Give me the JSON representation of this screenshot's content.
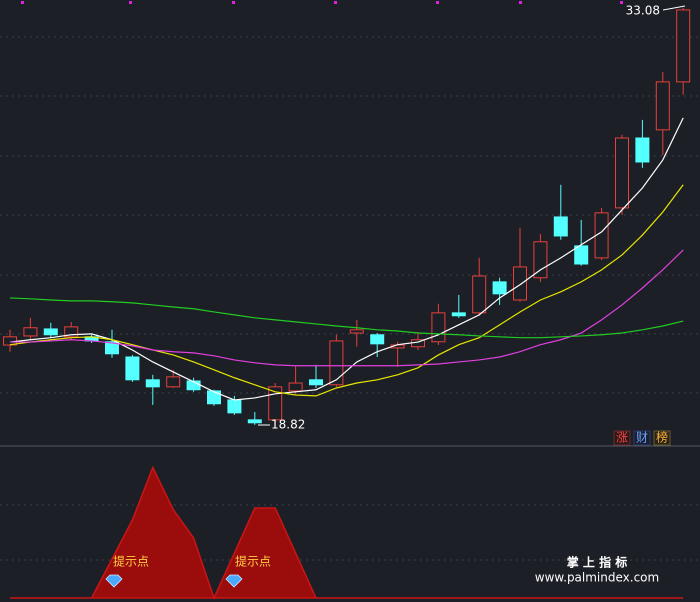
{
  "chart_data": [
    {
      "type": "candlestick",
      "open": [
        21.55,
        21.86,
        22.1,
        21.83,
        21.83,
        21.66,
        21.14,
        20.36,
        20.12,
        20.32,
        19.98,
        19.67,
        18.99,
        18.99,
        19.98,
        20.36,
        20.19,
        21.96,
        21.9,
        21.45,
        21.49,
        21.66,
        22.65,
        22.65,
        23.71,
        23.09,
        23.85,
        25.93,
        24.94,
        24.53,
        26.24,
        28.63,
        28.91,
        30.55
      ],
      "high": [
        22.07,
        22.48,
        22.31,
        22.34,
        21.9,
        22.07,
        21.21,
        20.53,
        20.7,
        20.43,
        20.02,
        19.81,
        19.26,
        20.25,
        20.84,
        20.87,
        21.9,
        22.41,
        21.96,
        21.66,
        22.0,
        22.96,
        23.26,
        24.53,
        23.85,
        25.56,
        25.35,
        27.03,
        25.83,
        26.24,
        28.74,
        29.25,
        30.89,
        33.08
      ],
      "low": [
        21.32,
        21.73,
        21.79,
        21.73,
        21.62,
        21.11,
        20.29,
        19.5,
        20.08,
        19.95,
        19.47,
        19.16,
        18.82,
        18.89,
        19.88,
        20.08,
        20.12,
        21.49,
        21.14,
        20.8,
        21.38,
        21.55,
        22.48,
        22.55,
        22.92,
        23.03,
        23.71,
        25.15,
        24.26,
        24.46,
        26.0,
        27.61,
        28.05,
        30.11
      ],
      "close": [
        21.83,
        22.14,
        21.9,
        22.17,
        21.69,
        21.25,
        20.36,
        20.12,
        20.46,
        20.02,
        19.54,
        19.23,
        18.89,
        20.12,
        20.25,
        20.19,
        21.69,
        22.07,
        21.59,
        21.55,
        21.73,
        22.65,
        22.55,
        23.91,
        23.3,
        24.22,
        25.08,
        25.28,
        24.32,
        26.07,
        28.63,
        27.81,
        30.55,
        33.01
      ],
      "up_color": "#e8403a",
      "down_color": "#54ffff",
      "ylim": [
        18.13,
        33.35
      ],
      "series": [
        {
          "color": "#ffffff",
          "values": [
            21.65,
            21.73,
            21.8,
            21.9,
            21.93,
            21.73,
            21.38,
            20.97,
            20.63,
            20.29,
            19.95,
            19.67,
            19.74,
            19.88,
            19.95,
            20.02,
            20.36,
            20.97,
            21.32,
            21.56,
            21.65,
            21.9,
            22.24,
            22.58,
            23.16,
            23.61,
            24.12,
            24.53,
            24.98,
            25.42,
            26.17,
            26.92,
            27.88,
            29.32
          ]
        },
        {
          "color": "#e6e600",
          "values": [
            21.56,
            21.65,
            21.73,
            21.8,
            21.83,
            21.73,
            21.56,
            21.38,
            21.21,
            20.97,
            20.7,
            20.43,
            20.19,
            19.95,
            19.84,
            19.81,
            20.08,
            20.25,
            20.36,
            20.53,
            20.77,
            21.21,
            21.56,
            21.8,
            22.24,
            22.68,
            23.09,
            23.37,
            23.71,
            24.12,
            24.63,
            25.31,
            26.1,
            27.03
          ]
        },
        {
          "color": "#e040e0",
          "values": [
            21.65,
            21.65,
            21.69,
            21.73,
            21.69,
            21.62,
            21.52,
            21.38,
            21.32,
            21.28,
            21.18,
            21.04,
            20.94,
            20.87,
            20.84,
            20.84,
            20.84,
            20.84,
            20.84,
            20.84,
            20.87,
            20.9,
            20.97,
            21.04,
            21.14,
            21.32,
            21.56,
            21.73,
            21.96,
            22.41,
            22.92,
            23.5,
            24.12,
            24.8
          ]
        },
        {
          "color": "#22cc22",
          "values": [
            23.16,
            23.13,
            23.09,
            23.06,
            23.06,
            23.03,
            22.99,
            22.92,
            22.85,
            22.79,
            22.68,
            22.58,
            22.48,
            22.41,
            22.34,
            22.27,
            22.2,
            22.14,
            22.07,
            22.03,
            21.96,
            21.93,
            21.9,
            21.86,
            21.83,
            21.8,
            21.8,
            21.83,
            21.86,
            21.9,
            21.96,
            22.07,
            22.2,
            22.37
          ]
        }
      ],
      "high_label": 33.08,
      "low_label": 18.82,
      "buttons": [
        "涨",
        "财",
        "榜"
      ]
    },
    {
      "type": "area",
      "color": "#9b0d0d",
      "line_color": "#cc1515",
      "values": [
        0,
        0,
        0,
        0,
        0,
        26,
        52,
        87,
        59,
        40,
        0,
        30,
        60,
        60,
        30,
        0,
        0,
        0,
        0,
        0,
        0,
        0,
        0,
        0,
        0,
        0,
        0,
        0,
        0,
        0,
        0,
        0,
        0,
        0
      ],
      "ylim": [
        0,
        100
      ],
      "annotations": [
        "提示点",
        "提示点"
      ],
      "brand": "掌 上 指 标",
      "url": "www.palmindex.com"
    }
  ]
}
